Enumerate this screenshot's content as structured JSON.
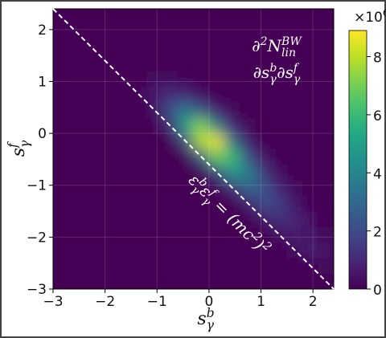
{
  "chart_data": {
    "type": "heatmap",
    "xlabel": [
      [
        "s",
        "base"
      ],
      [
        "b",
        "sup"
      ],
      [
        "γ",
        "sub"
      ]
    ],
    "ylabel": [
      [
        "s",
        "base"
      ],
      [
        "f",
        "sup"
      ],
      [
        "γ",
        "sub"
      ]
    ],
    "xbins": [
      -3,
      -2.7,
      -2.4,
      -2.1,
      -1.8,
      -1.5,
      -1.2,
      -0.9,
      -0.6,
      -0.3,
      0,
      0.3,
      0.6,
      0.9,
      1.2,
      1.5,
      1.8,
      2.1,
      2.4
    ],
    "ybins": [
      -3,
      -2.7,
      -2.4,
      -2.1,
      -1.8,
      -1.5,
      -1.2,
      -0.9,
      -0.6,
      -0.3,
      0,
      0.3,
      0.6,
      0.9,
      1.2,
      1.5,
      1.8,
      2.1,
      2.4
    ],
    "z": [
      [
        0,
        0,
        0,
        0,
        0,
        0,
        0,
        0,
        0,
        0,
        0,
        0,
        0,
        0,
        0,
        0,
        0,
        0
      ],
      [
        0,
        0,
        0,
        0,
        0,
        0,
        0,
        0,
        0,
        0,
        0,
        0,
        0,
        0,
        0,
        0,
        0.1,
        0.2
      ],
      [
        0,
        0,
        0,
        0,
        0,
        0,
        0,
        0,
        0,
        0,
        0,
        0,
        0,
        0,
        0,
        0.3,
        0.7,
        0.5
      ],
      [
        0,
        0,
        0,
        0,
        0,
        0,
        0,
        0,
        0,
        0,
        0,
        0,
        0,
        0,
        0.3,
        0.7,
        0.5,
        0.2
      ],
      [
        0,
        0,
        0,
        0,
        0,
        0,
        0,
        0,
        0,
        0,
        0,
        0,
        0,
        0.5,
        1.3,
        1.0,
        0.4,
        0.1
      ],
      [
        0,
        0,
        0,
        0,
        0,
        0,
        0,
        0,
        0,
        0,
        0,
        0,
        0.7,
        2.0,
        1.7,
        0.6,
        0.1,
        0
      ],
      [
        0,
        0,
        0,
        0,
        0,
        0,
        0,
        0,
        0,
        0,
        0,
        1.1,
        3.0,
        2.4,
        1.0,
        0.2,
        0,
        0
      ],
      [
        0,
        0,
        0,
        0,
        0,
        0,
        0,
        0,
        0,
        0,
        1.7,
        4.6,
        4.0,
        1.5,
        0.3,
        0.1,
        0,
        0
      ],
      [
        0,
        0,
        0,
        0,
        0,
        0,
        0,
        0,
        0,
        2.4,
        6.8,
        6.2,
        2.3,
        0.5,
        0.1,
        0,
        0,
        0
      ],
      [
        0,
        0,
        0,
        0,
        0,
        0,
        0,
        0,
        2.0,
        7.8,
        8.6,
        3.4,
        0.7,
        0.1,
        0,
        0,
        0,
        0
      ],
      [
        0,
        0,
        0,
        0,
        0,
        0,
        0,
        1.0,
        5.0,
        7.3,
        3.9,
        1.0,
        0.2,
        0,
        0,
        0,
        0,
        0
      ],
      [
        0,
        0,
        0,
        0,
        0,
        0,
        0.3,
        2.2,
        3.6,
        2.5,
        0.9,
        0.2,
        0,
        0,
        0,
        0,
        0,
        0
      ],
      [
        0,
        0,
        0,
        0,
        0,
        0.1,
        0.6,
        1.2,
        1.1,
        0.4,
        0.1,
        0,
        0,
        0,
        0,
        0,
        0,
        0
      ],
      [
        0,
        0,
        0,
        0,
        0,
        0,
        0.3,
        0.3,
        0.1,
        0.1,
        0,
        0,
        0,
        0,
        0,
        0,
        0,
        0
      ],
      [
        0,
        0,
        0,
        0,
        0,
        0,
        0,
        0,
        0,
        0,
        0,
        0,
        0,
        0,
        0,
        0,
        0,
        0
      ],
      [
        0,
        0,
        0,
        0,
        0,
        0,
        0,
        0,
        0,
        0,
        0,
        0,
        0,
        0,
        0,
        0,
        0,
        0
      ],
      [
        0,
        0,
        0,
        0,
        0,
        0,
        0,
        0,
        0,
        0,
        0,
        0,
        0,
        0,
        0,
        0,
        0,
        0
      ],
      [
        0,
        0,
        0,
        0,
        0,
        0,
        0,
        0,
        0,
        0,
        0,
        0,
        0,
        0,
        0,
        0,
        0,
        0
      ]
    ],
    "xlim": [
      -3,
      2.4
    ],
    "ylim": [
      -3,
      2.4
    ],
    "xticks": [
      {
        "value": -3,
        "label": "−3"
      },
      {
        "value": -2,
        "label": "−2"
      },
      {
        "value": -1,
        "label": "−1"
      },
      0,
      1,
      2
    ],
    "yticks": [
      {
        "value": -3,
        "label": "−3"
      },
      {
        "value": -2,
        "label": "−2"
      },
      {
        "value": -1,
        "label": "−1"
      },
      0,
      1,
      2
    ],
    "grid": true,
    "colormap": "viridis",
    "clim": [
      0,
      8.9
    ],
    "cticks": [
      0,
      2,
      4,
      6,
      8
    ],
    "colorbar_offset": [
      [
        "×10",
        "base"
      ],
      [
        "6",
        "sup"
      ]
    ],
    "line": {
      "x": [
        -3,
        2.4
      ],
      "y": [
        2.4,
        -3
      ],
      "color": "#ffffff",
      "label": [
        [
          "ε",
          "base"
        ],
        [
          "b",
          "sup"
        ],
        [
          "γ",
          "sub"
        ],
        [
          "ε",
          "base"
        ],
        [
          "f",
          "sup"
        ],
        [
          "γ",
          "sub"
        ],
        [
          " = (mc",
          "base"
        ],
        [
          "2",
          "sup"
        ],
        [
          ")",
          "base"
        ],
        [
          "2",
          "sup"
        ]
      ]
    },
    "annotation": {
      "numerator": [
        [
          "∂",
          "base"
        ],
        [
          "2",
          "sup"
        ],
        [
          "N",
          "base"
        ],
        [
          "BW",
          "sup"
        ],
        [
          "lin",
          "sub"
        ]
      ],
      "denominator": [
        [
          "∂s",
          "base"
        ],
        [
          "b",
          "sup"
        ],
        [
          "γ",
          "sub"
        ],
        [
          "∂s",
          "base"
        ],
        [
          "f",
          "sup"
        ],
        [
          "γ",
          "sub"
        ]
      ]
    }
  }
}
